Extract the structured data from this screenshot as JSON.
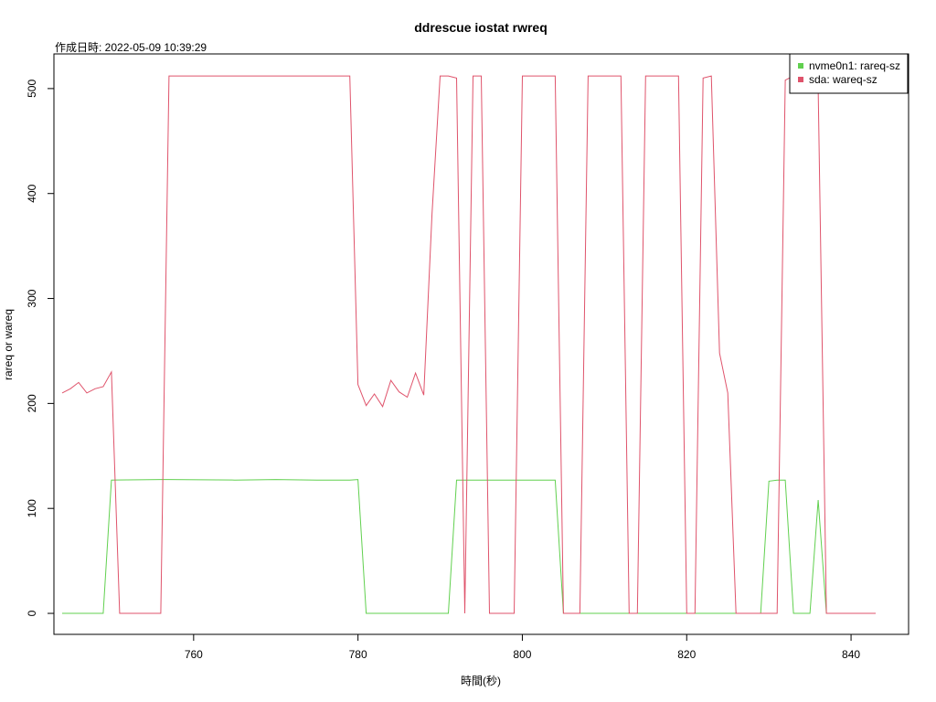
{
  "chart_data": {
    "type": "line",
    "title": "ddrescue iostat rwreq",
    "subtitle": "作成日時: 2022-05-09 10:39:29",
    "xlabel": "時間(秒)",
    "ylabel": "rareq or wareq",
    "xlim": [
      743,
      847
    ],
    "ylim": [
      -20,
      533
    ],
    "xticks": [
      760,
      780,
      800,
      820,
      840
    ],
    "yticks": [
      0,
      100,
      200,
      300,
      400,
      500
    ],
    "legend_position": "top-right",
    "series": [
      {
        "name": "nvme0n1: rareq-sz",
        "color": "#61D04F",
        "x": [
          744,
          749,
          750,
          756,
          757,
          765,
          770,
          775,
          779,
          780,
          781,
          791,
          792,
          800,
          804,
          805,
          807,
          808,
          820,
          827,
          828,
          829,
          830,
          831,
          832,
          833,
          835,
          836,
          837,
          843
        ],
        "y": [
          0,
          0,
          127,
          127.5,
          127.5,
          127,
          127.5,
          127,
          127,
          127.5,
          0,
          0,
          127,
          127,
          127,
          0,
          0,
          0,
          0,
          0,
          0,
          0,
          126,
          127,
          127,
          0,
          0,
          108,
          0,
          0
        ]
      },
      {
        "name": "sda: wareq-sz",
        "color": "#DF536B",
        "x": [
          744,
          745,
          746,
          747,
          748,
          749,
          750,
          751,
          752,
          755,
          756,
          757,
          760,
          770,
          778,
          779,
          780,
          781,
          782,
          783,
          784,
          785,
          786,
          787,
          788,
          789,
          790,
          791,
          792,
          793,
          794,
          795,
          796,
          797,
          799,
          800,
          804,
          805,
          807,
          808,
          812,
          813,
          814,
          815,
          819,
          820,
          821,
          822,
          823,
          824,
          825,
          826,
          828,
          829,
          831,
          832,
          833,
          836,
          837,
          843
        ],
        "y": [
          210,
          214,
          220,
          210,
          214,
          216,
          230,
          0,
          0,
          0,
          0,
          512,
          512,
          512,
          512,
          512,
          218,
          198,
          209,
          197,
          222,
          211,
          206,
          229,
          208,
          380,
          512,
          512,
          510,
          0,
          512,
          512,
          0,
          0,
          0,
          512,
          512,
          0,
          0,
          512,
          512,
          0,
          0,
          512,
          512,
          0,
          0,
          510,
          512,
          248,
          210,
          0,
          0,
          0,
          0,
          508,
          512,
          500,
          0,
          0
        ]
      }
    ]
  }
}
